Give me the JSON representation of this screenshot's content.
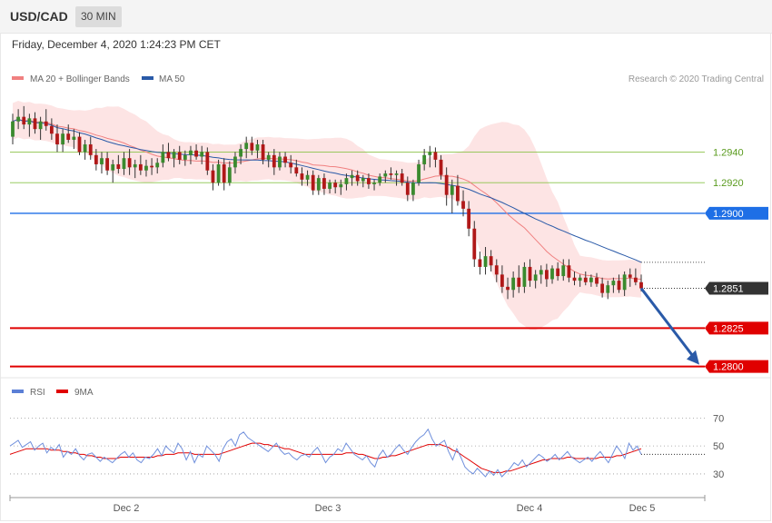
{
  "header": {
    "symbol": "USD/CAD",
    "timeframe": "30 MIN",
    "datetime": "Friday, December 4, 2020 1:24:23 PM CET"
  },
  "legend": {
    "main": [
      {
        "label": "MA 20 + Bollinger Bands",
        "color": "#f08080"
      },
      {
        "label": "MA 50",
        "color": "#2a5aa8"
      }
    ],
    "rsi": [
      {
        "label": "RSI",
        "color": "#5b7fd6"
      },
      {
        "label": "9MA",
        "color": "#e00000"
      }
    ]
  },
  "copyright": "Research © 2020 Trading Central",
  "chart_data": {
    "type": "candlestick",
    "instrument": "USD/CAD",
    "interval": "30 MIN",
    "ylim": [
      1.2795,
      1.298
    ],
    "x_tick_labels": [
      "Dec 2",
      "Dec 3",
      "Dec 4",
      "Dec 5"
    ],
    "levels": [
      {
        "value": 1.294,
        "label": "1.2940",
        "style": "thin",
        "color": "#8bc34a"
      },
      {
        "value": 1.292,
        "label": "1.2920",
        "style": "thin",
        "color": "#8bc34a"
      },
      {
        "value": 1.29,
        "label": "1.2900",
        "style": "pivot",
        "color": "#1e6fe6"
      },
      {
        "value": 1.2851,
        "label": "1.2851",
        "style": "last",
        "color": "#333333"
      },
      {
        "value": 1.2825,
        "label": "1.2825",
        "style": "target",
        "color": "#e00000"
      },
      {
        "value": 1.28,
        "label": "1.2800",
        "style": "target",
        "color": "#e00000"
      }
    ],
    "ma50_end": 1.2868,
    "projection": {
      "from": 1.2851,
      "to": 1.28,
      "color": "#2a5aa8"
    },
    "candles": [
      [
        1.295,
        1.2965,
        1.2945,
        1.296
      ],
      [
        1.296,
        1.2968,
        1.2955,
        1.2963
      ],
      [
        1.2963,
        1.297,
        1.2955,
        1.2958
      ],
      [
        1.2958,
        1.2965,
        1.295,
        1.2962
      ],
      [
        1.2962,
        1.2966,
        1.2952,
        1.2955
      ],
      [
        1.2955,
        1.2963,
        1.2948,
        1.296
      ],
      [
        1.296,
        1.2968,
        1.2954,
        1.2957
      ],
      [
        1.2957,
        1.2962,
        1.2948,
        1.2952
      ],
      [
        1.2952,
        1.2958,
        1.294,
        1.2945
      ],
      [
        1.2945,
        1.2955,
        1.294,
        1.2952
      ],
      [
        1.2952,
        1.2958,
        1.2946,
        1.2948
      ],
      [
        1.2948,
        1.2955,
        1.2942,
        1.295
      ],
      [
        1.295,
        1.2953,
        1.2938,
        1.294
      ],
      [
        1.294,
        1.2948,
        1.2935,
        1.2945
      ],
      [
        1.2945,
        1.295,
        1.2935,
        1.2938
      ],
      [
        1.2938,
        1.2942,
        1.2928,
        1.2932
      ],
      [
        1.2932,
        1.294,
        1.2926,
        1.2936
      ],
      [
        1.2936,
        1.294,
        1.2925,
        1.2928
      ],
      [
        1.2928,
        1.2935,
        1.292,
        1.2932
      ],
      [
        1.2932,
        1.2938,
        1.2926,
        1.2929
      ],
      [
        1.2929,
        1.294,
        1.2925,
        1.2936
      ],
      [
        1.2936,
        1.2942,
        1.2925,
        1.293
      ],
      [
        1.293,
        1.2935,
        1.2923,
        1.2932
      ],
      [
        1.2932,
        1.2938,
        1.2925,
        1.2928
      ],
      [
        1.2928,
        1.2935,
        1.2924,
        1.2931
      ],
      [
        1.2931,
        1.2936,
        1.2925,
        1.293
      ],
      [
        1.293,
        1.2936,
        1.2926,
        1.2933
      ],
      [
        1.2933,
        1.2945,
        1.293,
        1.294
      ],
      [
        1.294,
        1.2946,
        1.2934,
        1.2936
      ],
      [
        1.2936,
        1.2942,
        1.293,
        1.294
      ],
      [
        1.294,
        1.2944,
        1.2932,
        1.2935
      ],
      [
        1.2935,
        1.2941,
        1.2931,
        1.2938
      ],
      [
        1.2938,
        1.2944,
        1.2932,
        1.2941
      ],
      [
        1.2941,
        1.2945,
        1.2935,
        1.2937
      ],
      [
        1.2937,
        1.2944,
        1.2932,
        1.294
      ],
      [
        1.294,
        1.2943,
        1.2925,
        1.2928
      ],
      [
        1.2928,
        1.2932,
        1.2915,
        1.292
      ],
      [
        1.292,
        1.2935,
        1.2918,
        1.2932
      ],
      [
        1.2932,
        1.2936,
        1.2915,
        1.292
      ],
      [
        1.292,
        1.2934,
        1.2918,
        1.293
      ],
      [
        1.293,
        1.294,
        1.2926,
        1.2937
      ],
      [
        1.2937,
        1.2945,
        1.2932,
        1.2942
      ],
      [
        1.2942,
        1.295,
        1.2936,
        1.2946
      ],
      [
        1.2946,
        1.295,
        1.2938,
        1.2941
      ],
      [
        1.2941,
        1.2948,
        1.2936,
        1.2945
      ],
      [
        1.2945,
        1.2948,
        1.2932,
        1.2935
      ],
      [
        1.2935,
        1.294,
        1.293,
        1.2938
      ],
      [
        1.2938,
        1.2942,
        1.2925,
        1.293
      ],
      [
        1.293,
        1.294,
        1.2928,
        1.2937
      ],
      [
        1.2937,
        1.294,
        1.293,
        1.2933
      ],
      [
        1.2933,
        1.2938,
        1.2926,
        1.293
      ],
      [
        1.293,
        1.2935,
        1.2924,
        1.2926
      ],
      [
        1.2926,
        1.293,
        1.2918,
        1.2922
      ],
      [
        1.2922,
        1.2928,
        1.2918,
        1.2925
      ],
      [
        1.2925,
        1.2928,
        1.2912,
        1.2915
      ],
      [
        1.2915,
        1.2925,
        1.2912,
        1.2923
      ],
      [
        1.2923,
        1.2926,
        1.2912,
        1.2916
      ],
      [
        1.2916,
        1.2922,
        1.2913,
        1.292
      ],
      [
        1.292,
        1.2922,
        1.2913,
        1.2917
      ],
      [
        1.2917,
        1.2922,
        1.2912,
        1.2919
      ],
      [
        1.2919,
        1.2926,
        1.2915,
        1.2923
      ],
      [
        1.2923,
        1.2928,
        1.2918,
        1.2925
      ],
      [
        1.2925,
        1.2928,
        1.2918,
        1.2921
      ],
      [
        1.2921,
        1.2925,
        1.2917,
        1.2923
      ],
      [
        1.2923,
        1.2926,
        1.2916,
        1.2919
      ],
      [
        1.2919,
        1.2922,
        1.2915,
        1.292
      ],
      [
        1.292,
        1.2926,
        1.2918,
        1.2924
      ],
      [
        1.2924,
        1.2928,
        1.292,
        1.2926
      ],
      [
        1.2926,
        1.293,
        1.2922,
        1.2925
      ],
      [
        1.2925,
        1.2928,
        1.2918,
        1.2926
      ],
      [
        1.2926,
        1.2929,
        1.2918,
        1.292
      ],
      [
        1.292,
        1.2924,
        1.2908,
        1.2912
      ],
      [
        1.2912,
        1.2922,
        1.2908,
        1.292
      ],
      [
        1.292,
        1.2935,
        1.2918,
        1.2932
      ],
      [
        1.2932,
        1.2942,
        1.2928,
        1.2938
      ],
      [
        1.2938,
        1.2944,
        1.293,
        1.294
      ],
      [
        1.294,
        1.2943,
        1.293,
        1.2935
      ],
      [
        1.2935,
        1.2938,
        1.2922,
        1.2925
      ],
      [
        1.2925,
        1.293,
        1.2905,
        1.2912
      ],
      [
        1.2912,
        1.2922,
        1.29,
        1.2918
      ],
      [
        1.2918,
        1.2925,
        1.2905,
        1.2908
      ],
      [
        1.2908,
        1.2915,
        1.2898,
        1.2903
      ],
      [
        1.2903,
        1.2908,
        1.2885,
        1.289
      ],
      [
        1.289,
        1.2895,
        1.2865,
        1.287
      ],
      [
        1.287,
        1.2875,
        1.286,
        1.2865
      ],
      [
        1.2865,
        1.2878,
        1.286,
        1.2872
      ],
      [
        1.2872,
        1.2876,
        1.2862,
        1.2866
      ],
      [
        1.2866,
        1.287,
        1.2855,
        1.286
      ],
      [
        1.286,
        1.2866,
        1.2848,
        1.2852
      ],
      [
        1.2852,
        1.2858,
        1.2844,
        1.285
      ],
      [
        1.285,
        1.2862,
        1.2845,
        1.2858
      ],
      [
        1.2858,
        1.2866,
        1.2848,
        1.2852
      ],
      [
        1.2852,
        1.2868,
        1.2848,
        1.2865
      ],
      [
        1.2865,
        1.287,
        1.2852,
        1.2856
      ],
      [
        1.2856,
        1.2863,
        1.2851,
        1.286
      ],
      [
        1.286,
        1.2866,
        1.2854,
        1.2863
      ],
      [
        1.2863,
        1.2867,
        1.2852,
        1.2857
      ],
      [
        1.2857,
        1.2866,
        1.2854,
        1.2864
      ],
      [
        1.2864,
        1.2868,
        1.2856,
        1.2859
      ],
      [
        1.2859,
        1.287,
        1.2856,
        1.2866
      ],
      [
        1.2866,
        1.287,
        1.2855,
        1.2858
      ],
      [
        1.2858,
        1.2862,
        1.2853,
        1.2856
      ],
      [
        1.2856,
        1.286,
        1.2852,
        1.2858
      ],
      [
        1.2858,
        1.2862,
        1.2853,
        1.2855
      ],
      [
        1.2855,
        1.286,
        1.2852,
        1.2858
      ],
      [
        1.2858,
        1.2861,
        1.2852,
        1.2854
      ],
      [
        1.2854,
        1.2858,
        1.2845,
        1.2848
      ],
      [
        1.2848,
        1.2856,
        1.2844,
        1.2853
      ],
      [
        1.2853,
        1.2858,
        1.2848,
        1.2856
      ],
      [
        1.2856,
        1.286,
        1.2848,
        1.285
      ],
      [
        1.285,
        1.2862,
        1.2846,
        1.286
      ],
      [
        1.286,
        1.2864,
        1.2852,
        1.2858
      ],
      [
        1.2858,
        1.2864,
        1.2853,
        1.2855
      ],
      [
        1.2855,
        1.286,
        1.2849,
        1.2851
      ]
    ],
    "rsi_axis": {
      "ylim": [
        15,
        80
      ],
      "ticks": [
        70,
        50,
        30
      ]
    },
    "rsi": [
      50,
      52,
      54,
      49,
      51,
      53,
      47,
      50,
      52,
      45,
      49,
      47,
      51,
      42,
      46,
      44,
      48,
      43,
      40,
      44,
      45,
      42,
      39,
      42,
      40,
      38,
      41,
      44,
      46,
      42,
      45,
      40,
      38,
      42,
      41,
      44,
      48,
      43,
      50,
      47,
      45,
      52,
      48,
      40,
      46,
      38,
      44,
      42,
      50,
      47,
      44,
      39,
      48,
      53,
      55,
      50,
      58,
      60,
      56,
      54,
      52,
      50,
      48,
      46,
      49,
      52,
      47,
      44,
      45,
      42,
      40,
      43,
      44,
      42,
      46,
      49,
      44,
      38,
      42,
      44,
      48,
      46,
      52,
      48,
      44,
      42,
      40,
      43,
      38,
      35,
      43,
      47,
      42,
      44,
      48,
      51,
      47,
      44,
      49,
      53,
      56,
      58,
      62,
      55,
      50,
      52,
      54,
      46,
      40,
      48,
      42,
      35,
      32,
      30,
      34,
      31,
      28,
      32,
      29,
      33,
      28,
      31,
      34,
      38,
      36,
      40,
      35,
      38,
      41,
      44,
      42,
      39,
      41,
      44,
      40,
      43,
      46,
      42,
      40,
      38,
      40,
      42,
      39,
      43,
      46,
      42,
      38,
      44,
      50,
      46,
      41,
      52,
      47,
      50,
      44
    ],
    "rsi_ma": [
      44,
      45,
      46,
      47,
      48,
      48,
      48,
      48,
      48,
      48,
      47,
      47,
      47,
      46,
      46,
      45,
      45,
      44,
      44,
      43,
      43,
      42,
      42,
      41,
      41,
      41,
      41,
      42,
      42,
      42,
      42,
      42,
      42,
      42,
      42,
      42,
      43,
      43,
      44,
      44,
      44,
      45,
      45,
      45,
      45,
      44,
      44,
      44,
      44,
      44,
      44,
      44,
      45,
      46,
      47,
      48,
      49,
      50,
      51,
      52,
      52,
      52,
      51,
      51,
      50,
      50,
      49,
      48,
      48,
      47,
      46,
      45,
      44,
      44,
      44,
      44,
      44,
      44,
      44,
      44,
      44,
      44,
      45,
      45,
      45,
      44,
      44,
      43,
      42,
      41,
      41,
      42,
      42,
      43,
      43,
      44,
      45,
      46,
      47,
      48,
      49,
      50,
      51,
      51,
      51,
      51,
      50,
      49,
      47,
      46,
      44,
      42,
      40,
      38,
      36,
      34,
      33,
      32,
      31,
      31,
      31,
      32,
      32,
      33,
      34,
      35,
      36,
      37,
      38,
      39,
      40,
      40,
      41,
      41,
      41,
      41,
      42,
      42,
      41,
      41,
      41,
      41,
      41,
      41,
      42,
      42,
      42,
      42,
      43,
      43,
      44,
      45,
      46,
      47,
      48
    ]
  }
}
